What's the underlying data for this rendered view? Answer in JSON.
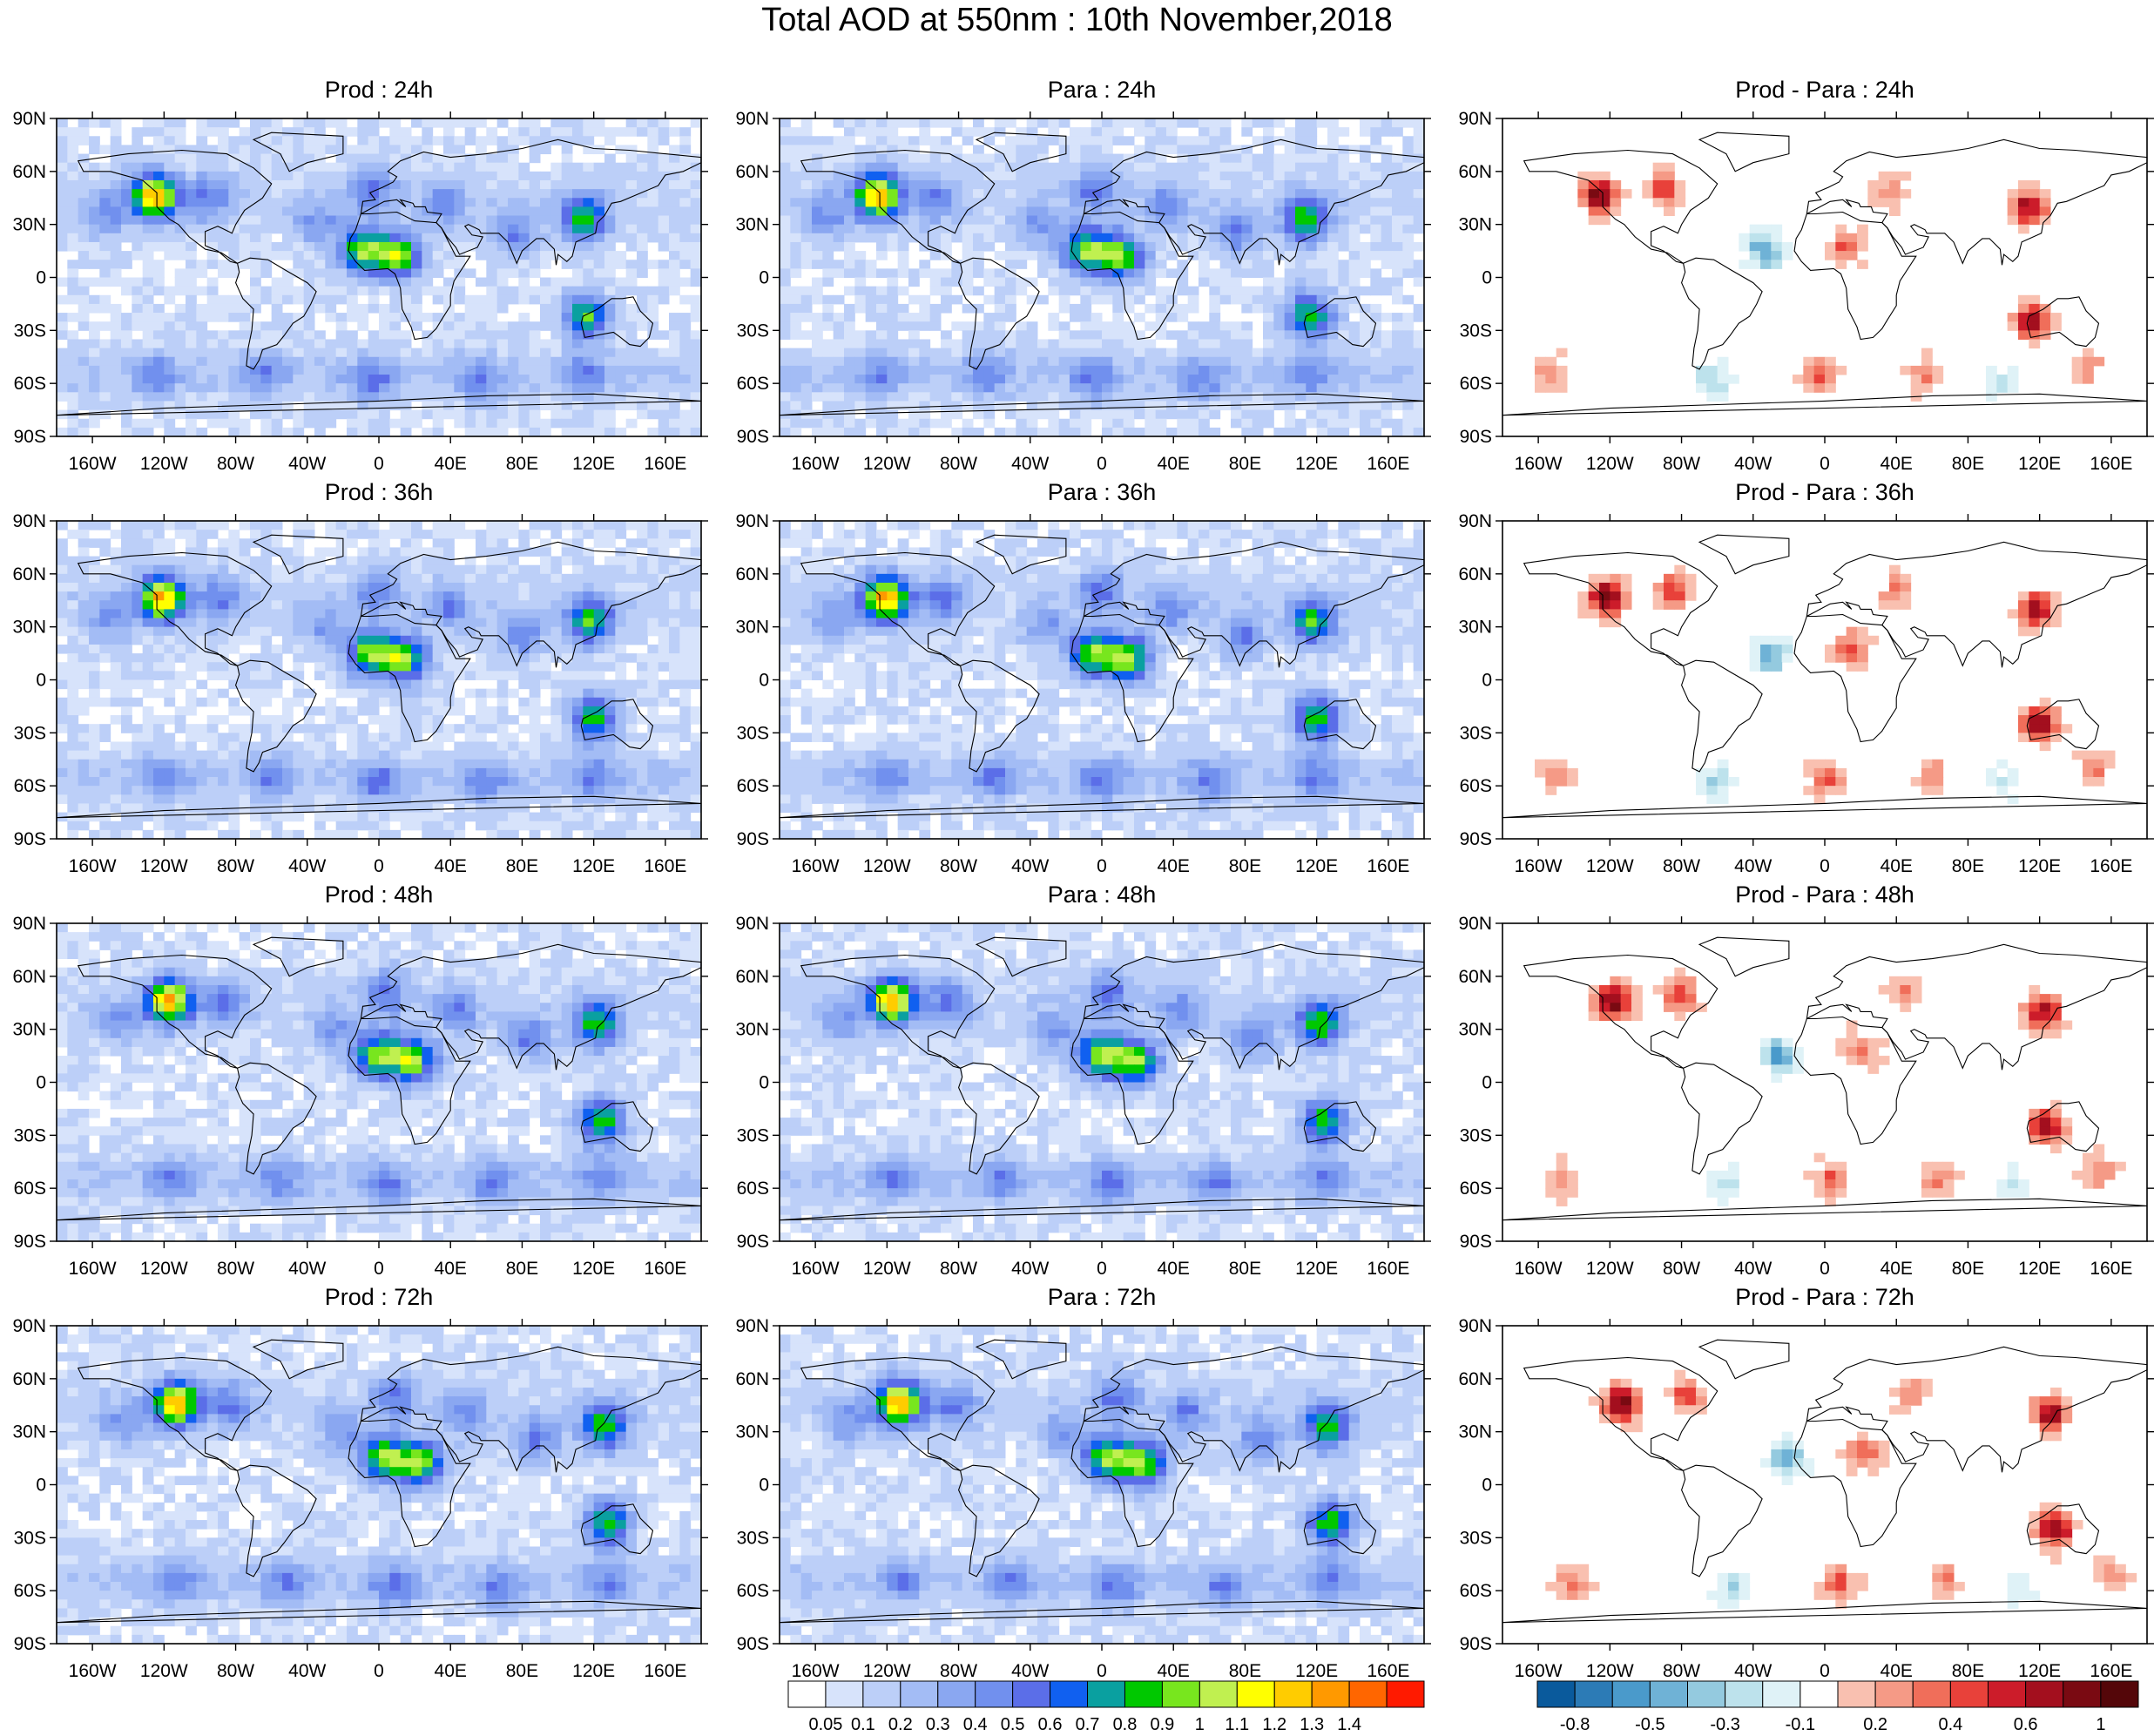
{
  "title": "Total AOD at 550nm : 10th November,2018",
  "lat_ticks": [
    "90N",
    "60N",
    "30N",
    "0",
    "30S",
    "60S",
    "90S"
  ],
  "lon_ticks": [
    "160W",
    "120W",
    "80W",
    "40W",
    "0",
    "40E",
    "80E",
    "120E",
    "160E"
  ],
  "panels": [
    {
      "title": "Prod : 24h",
      "type": "aod"
    },
    {
      "title": "Para : 24h",
      "type": "aod"
    },
    {
      "title": "Prod - Para : 24h",
      "type": "diff"
    },
    {
      "title": "Prod : 36h",
      "type": "aod"
    },
    {
      "title": "Para : 36h",
      "type": "aod"
    },
    {
      "title": "Prod - Para : 36h",
      "type": "diff"
    },
    {
      "title": "Prod : 48h",
      "type": "aod"
    },
    {
      "title": "Para : 48h",
      "type": "aod"
    },
    {
      "title": "Prod - Para : 48h",
      "type": "diff"
    },
    {
      "title": "Prod : 72h",
      "type": "aod"
    },
    {
      "title": "Para : 72h",
      "type": "aod"
    },
    {
      "title": "Prod - Para : 72h",
      "type": "diff"
    }
  ],
  "aod_colorbar": {
    "labels": [
      "0.05",
      "0.1",
      "0.2",
      "0.3",
      "0.4",
      "0.5",
      "0.6",
      "0.7",
      "0.8",
      "0.9",
      "1",
      "1.1",
      "1.2",
      "1.3",
      "1.4"
    ],
    "colors": [
      "#ffffff",
      "#d7e3fb",
      "#bccff8",
      "#a3bcf5",
      "#8aa7f1",
      "#7190ee",
      "#5b6ee8",
      "#1060f0",
      "#0aa0a0",
      "#00c800",
      "#78e61e",
      "#c0f050",
      "#ffff00",
      "#ffcc00",
      "#ff9900",
      "#ff6600",
      "#ff1a00"
    ]
  },
  "diff_colorbar": {
    "labels": [
      "-0.8",
      "-0.5",
      "-0.3",
      "-0.1",
      "0.2",
      "0.4",
      "0.6",
      "1"
    ],
    "colors": [
      "#0a5a9c",
      "#2c7bb6",
      "#4a9acb",
      "#6fb2d6",
      "#94cadf",
      "#bde2ec",
      "#dff2f7",
      "#ffffff",
      "#f9c0b0",
      "#f59a86",
      "#f06e5a",
      "#e8413a",
      "#cc1c2a",
      "#a30f1e",
      "#7a0a12",
      "#540609"
    ]
  }
}
